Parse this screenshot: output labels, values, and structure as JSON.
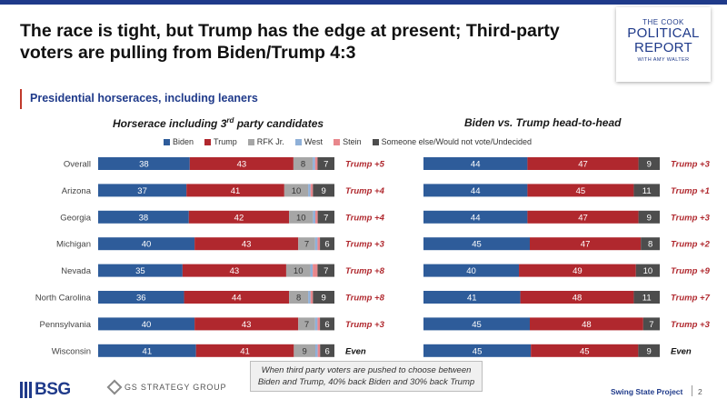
{
  "title": "The race is tight, but Trump has the edge at present; Third-party voters are pulling from Biden/Trump 4:3",
  "subtitle": "Presidential horseraces, including leaners",
  "logo": {
    "line1": "THE COOK",
    "line2": "POLITICAL",
    "line3": "REPORT",
    "line4": "WITH AMY WALTER"
  },
  "legend": [
    {
      "name": "Biden",
      "color": "#2e5c9a"
    },
    {
      "name": "Trump",
      "color": "#b0282e"
    },
    {
      "name": "RFK Jr.",
      "color": "#a6a6a6"
    },
    {
      "name": "West",
      "color": "#8fb0d8"
    },
    {
      "name": "Stein",
      "color": "#e8878c"
    },
    {
      "name": "Someone else/Would not vote/Undecided",
      "color": "#4d4d4d"
    }
  ],
  "chart_data": [
    {
      "type": "bar",
      "title_main": "Horserace including 3",
      "title_sup": "rd",
      "title_rest": " party candidates",
      "categories": [
        "Overall",
        "Arizona",
        "Georgia",
        "Michigan",
        "Nevada",
        "North Carolina",
        "Pennsylvania",
        "Wisconsin"
      ],
      "series": [
        {
          "name": "Biden",
          "values": [
            38,
            37,
            38,
            40,
            35,
            36,
            40,
            41
          ]
        },
        {
          "name": "Trump",
          "values": [
            43,
            41,
            42,
            43,
            43,
            44,
            43,
            41
          ]
        },
        {
          "name": "RFK Jr.",
          "values": [
            8,
            10,
            10,
            7,
            10,
            8,
            7,
            9
          ]
        },
        {
          "name": "West",
          "values": [
            1,
            1,
            1,
            1,
            1,
            1,
            1,
            1
          ]
        },
        {
          "name": "Stein",
          "values": [
            1,
            1,
            1,
            1,
            2,
            1,
            1,
            1
          ]
        },
        {
          "name": "Someone else/Would not vote/Undecided",
          "values": [
            7,
            9,
            7,
            6,
            7,
            9,
            6,
            6
          ]
        }
      ],
      "margins": [
        "Trump +5",
        "Trump +4",
        "Trump +4",
        "Trump +3",
        "Trump +8",
        "Trump +8",
        "Trump +3",
        "Even"
      ]
    },
    {
      "type": "bar",
      "title": "Biden vs. Trump head-to-head",
      "categories": [
        "Overall",
        "Arizona",
        "Georgia",
        "Michigan",
        "Nevada",
        "North Carolina",
        "Pennsylvania",
        "Wisconsin"
      ],
      "series": [
        {
          "name": "Biden",
          "values": [
            44,
            44,
            44,
            45,
            40,
            41,
            45,
            45
          ]
        },
        {
          "name": "Trump",
          "values": [
            47,
            45,
            47,
            47,
            49,
            48,
            48,
            45
          ]
        },
        {
          "name": "Someone else/Would not vote/Undecided",
          "values": [
            9,
            11,
            9,
            8,
            10,
            11,
            7,
            9
          ]
        }
      ],
      "margins": [
        "Trump +3",
        "Trump +1",
        "Trump +3",
        "Trump +2",
        "Trump +9",
        "Trump +7",
        "Trump +3",
        "Even"
      ]
    }
  ],
  "note": "When third party voters are pushed to choose between Biden and Trump, 40% back Biden and 30% back Trump",
  "footer": {
    "bsg": "BSG",
    "gs": "GS STRATEGY GROUP",
    "project": "Swing State Project",
    "page": "2"
  }
}
